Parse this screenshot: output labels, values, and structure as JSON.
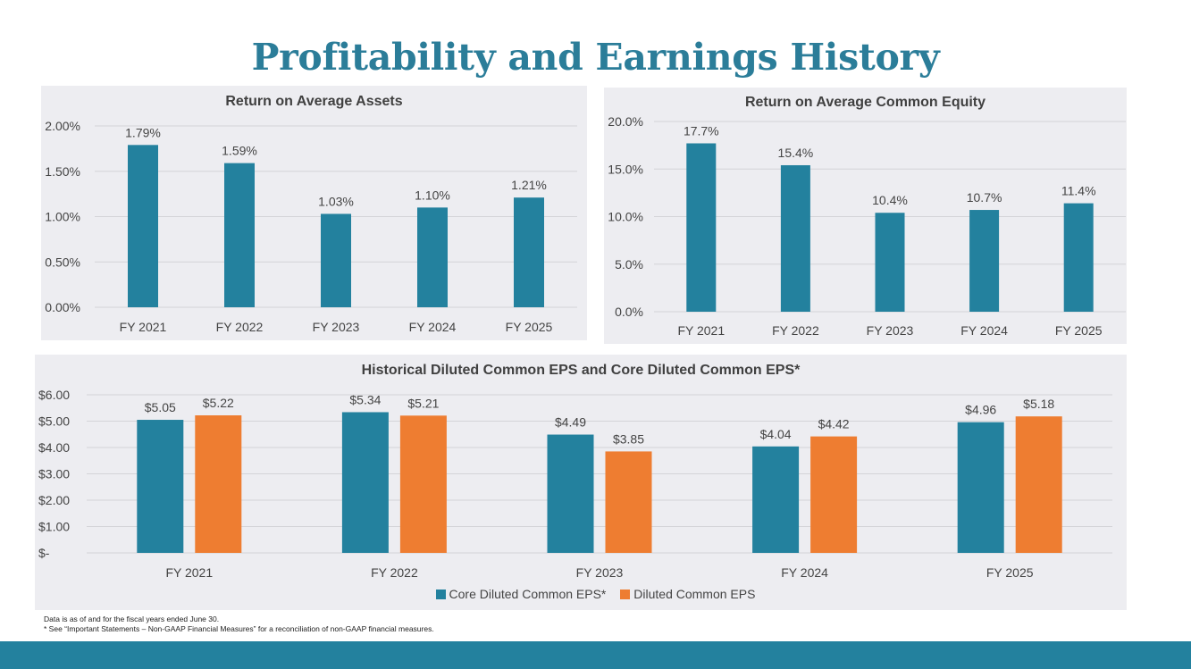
{
  "page": {
    "title": "Profitability and Earnings History",
    "footnote_1": "Data is as of and for the fiscal years ended June 30.",
    "footnote_2": "* See “Important Statements – Non-GAAP Financial Measures” for a reconciliation of non-GAAP financial measures.",
    "colors": {
      "title": "#2B7D99",
      "teal": "#23819E",
      "orange": "#EE7D31",
      "panel_bg": "#EDEDF1",
      "footer": "#23819E",
      "grid": "#D4D4D8",
      "text": "#444444"
    }
  },
  "chart_data": [
    {
      "id": "roaa",
      "type": "bar",
      "title": "Return on Average Assets",
      "categories": [
        "FY 2021",
        "FY 2022",
        "FY 2023",
        "FY 2024",
        "FY 2025"
      ],
      "values": [
        1.79,
        1.59,
        1.03,
        1.1,
        1.21
      ],
      "value_labels": [
        "1.79%",
        "1.59%",
        "1.03%",
        "1.10%",
        "1.21%"
      ],
      "ylim": [
        0,
        2.0
      ],
      "yticks": [
        0,
        0.5,
        1.0,
        1.5,
        2.0
      ],
      "ytick_labels": [
        "0.00%",
        "0.50%",
        "1.00%",
        "1.50%",
        "2.00%"
      ],
      "grid": true
    },
    {
      "id": "roace",
      "type": "bar",
      "title": "Return on Average Common Equity",
      "categories": [
        "FY 2021",
        "FY 2022",
        "FY 2023",
        "FY 2024",
        "FY 2025"
      ],
      "values": [
        17.7,
        15.4,
        10.4,
        10.7,
        11.4
      ],
      "value_labels": [
        "17.7%",
        "15.4%",
        "10.4%",
        "10.7%",
        "11.4%"
      ],
      "ylim": [
        0,
        20
      ],
      "yticks": [
        0,
        5,
        10,
        15,
        20
      ],
      "ytick_labels": [
        "0.0%",
        "5.0%",
        "10.0%",
        "15.0%",
        "20.0%"
      ],
      "grid": true
    },
    {
      "id": "eps",
      "type": "bar",
      "title": "Historical Diluted Common EPS and Core Diluted Common EPS*",
      "categories": [
        "FY 2021",
        "FY 2022",
        "FY 2023",
        "FY 2024",
        "FY 2025"
      ],
      "series": [
        {
          "name": "Core Diluted Common EPS*",
          "color": "#23819E",
          "values": [
            5.05,
            5.34,
            4.49,
            4.04,
            4.96
          ],
          "value_labels": [
            "$5.05",
            "$5.34",
            "$4.49",
            "$4.04",
            "$4.96"
          ]
        },
        {
          "name": "Diluted Common EPS",
          "color": "#EE7D31",
          "values": [
            5.22,
            5.21,
            3.85,
            4.42,
            5.18
          ],
          "value_labels": [
            "$5.22",
            "$5.21",
            "$3.85",
            "$4.42",
            "$5.18"
          ]
        }
      ],
      "ylim": [
        0,
        6
      ],
      "yticks": [
        0,
        1,
        2,
        3,
        4,
        5,
        6
      ],
      "ytick_labels": [
        "$-",
        "$1.00",
        "$2.00",
        "$3.00",
        "$4.00",
        "$5.00",
        "$6.00"
      ],
      "legend": "bottom",
      "grid": true
    }
  ]
}
